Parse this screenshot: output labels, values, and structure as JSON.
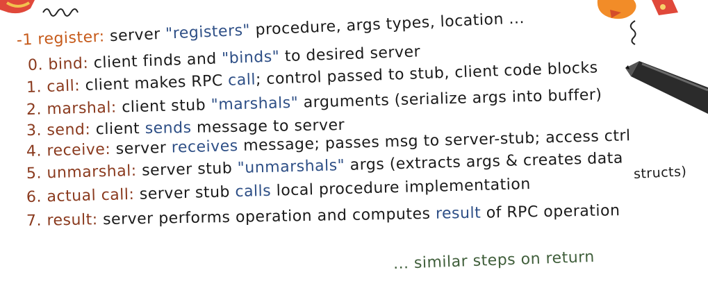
{
  "colors": {
    "label": "#8a3a1e",
    "first_label": "#c65a1a",
    "keyword": "#2e4f86",
    "text": "#1a1a1a"
  },
  "steps": [
    {
      "label": "-1 register:",
      "parts": [
        {
          "t": " server ",
          "k": false
        },
        {
          "t": "\"registers\"",
          "k": true
        },
        {
          "t": " procedure, args types, location ...",
          "k": false
        }
      ]
    },
    {
      "label": "0. bind:",
      "parts": [
        {
          "t": " client finds and ",
          "k": false
        },
        {
          "t": "\"binds\"",
          "k": true
        },
        {
          "t": " to desired server",
          "k": false
        }
      ]
    },
    {
      "label": "1. call:",
      "parts": [
        {
          "t": " client makes RPC ",
          "k": false
        },
        {
          "t": "call",
          "k": true
        },
        {
          "t": "; control passed to stub, client code blocks",
          "k": false
        }
      ]
    },
    {
      "label": "2. marshal:",
      "parts": [
        {
          "t": " client stub ",
          "k": false
        },
        {
          "t": "\"marshals\"",
          "k": true
        },
        {
          "t": " arguments (serialize args into buffer)",
          "k": false
        }
      ]
    },
    {
      "label": "3. send:",
      "parts": [
        {
          "t": " client ",
          "k": false
        },
        {
          "t": "sends",
          "k": true
        },
        {
          "t": " message to server",
          "k": false
        }
      ]
    },
    {
      "label": "4. receive:",
      "parts": [
        {
          "t": " server ",
          "k": false
        },
        {
          "t": "receives",
          "k": true
        },
        {
          "t": " message; passes msg to server-stub; access ctrl",
          "k": false
        }
      ]
    },
    {
      "label": "5. unmarshal:",
      "parts": [
        {
          "t": " server stub ",
          "k": false
        },
        {
          "t": "\"unmarshals\"",
          "k": true
        },
        {
          "t": " args (extracts args & creates data",
          "k": false
        }
      ]
    },
    {
      "label": "6. actual call:",
      "parts": [
        {
          "t": " server stub ",
          "k": false
        },
        {
          "t": "calls",
          "k": true
        },
        {
          "t": " local procedure implementation",
          "k": false
        }
      ]
    },
    {
      "label": "7. result:",
      "parts": [
        {
          "t": " server performs operation and computes ",
          "k": false
        },
        {
          "t": "result",
          "k": true
        },
        {
          "t": " of RPC operation",
          "k": false
        }
      ]
    }
  ],
  "continuation": "structs)",
  "footer": "... similar steps on return"
}
